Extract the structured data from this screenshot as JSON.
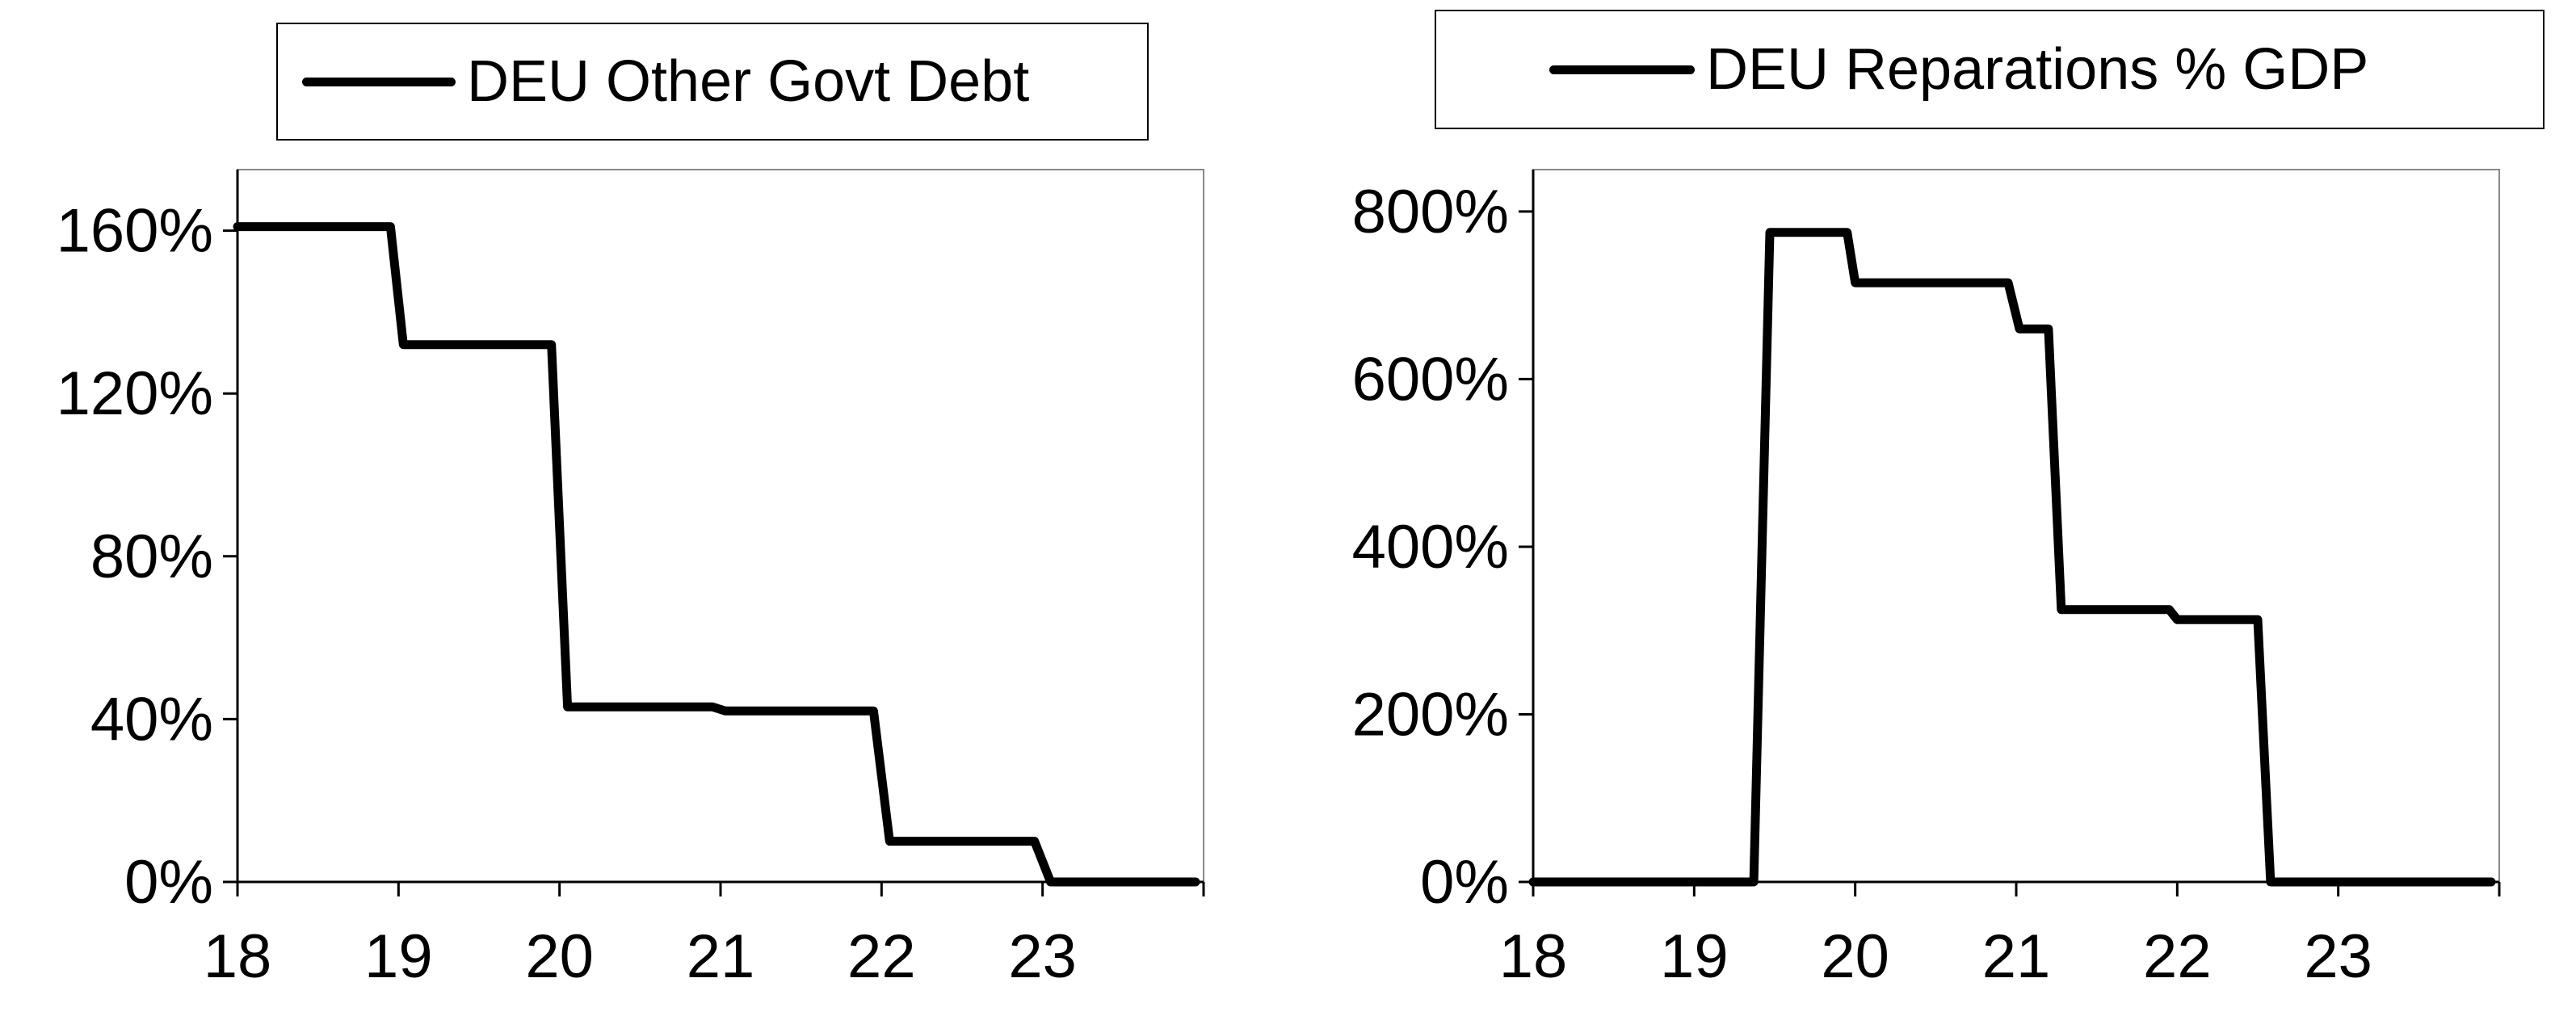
{
  "chart_data": [
    {
      "type": "line",
      "legend_position": "top",
      "grid": false,
      "series": [
        {
          "name": "DEU Other Govt Debt",
          "x": [
            18.0,
            18.95,
            19.03,
            19.95,
            20.05,
            20.95,
            21.03,
            21.95,
            22.05,
            22.95,
            23.05,
            23.95
          ],
          "y": [
            161,
            161,
            132,
            132,
            43,
            43,
            42,
            42,
            10,
            10,
            0,
            0
          ]
        }
      ],
      "xlim": [
        18.0,
        24.0
      ],
      "ylim": [
        0,
        175
      ],
      "x_ticks": [
        18,
        19,
        20,
        21,
        22,
        23
      ],
      "y_ticks": [
        0,
        40,
        80,
        120,
        160
      ],
      "x_tick_labels": [
        "18",
        "19",
        "20",
        "21",
        "22",
        "23"
      ],
      "y_tick_labels": [
        "0%",
        "40%",
        "80%",
        "120%",
        "160%"
      ],
      "color": "#000000"
    },
    {
      "type": "line",
      "legend_position": "top",
      "grid": false,
      "series": [
        {
          "name": "DEU Reparations % GDP",
          "x": [
            18.0,
            19.37,
            19.47,
            19.95,
            20.0,
            20.95,
            21.02,
            21.2,
            21.28,
            21.95,
            22.0,
            22.5,
            22.58,
            23.95
          ],
          "y": [
            0,
            0,
            775,
            775,
            715,
            715,
            660,
            660,
            325,
            325,
            313,
            313,
            0,
            0
          ]
        }
      ],
      "xlim": [
        18.0,
        24.0
      ],
      "ylim": [
        0,
        850
      ],
      "x_ticks": [
        18,
        19,
        20,
        21,
        22,
        23
      ],
      "y_ticks": [
        0,
        200,
        400,
        600,
        800
      ],
      "x_tick_labels": [
        "18",
        "19",
        "20",
        "21",
        "22",
        "23"
      ],
      "y_tick_labels": [
        "0%",
        "200%",
        "400%",
        "600%",
        "800%"
      ],
      "color": "#000000"
    }
  ]
}
